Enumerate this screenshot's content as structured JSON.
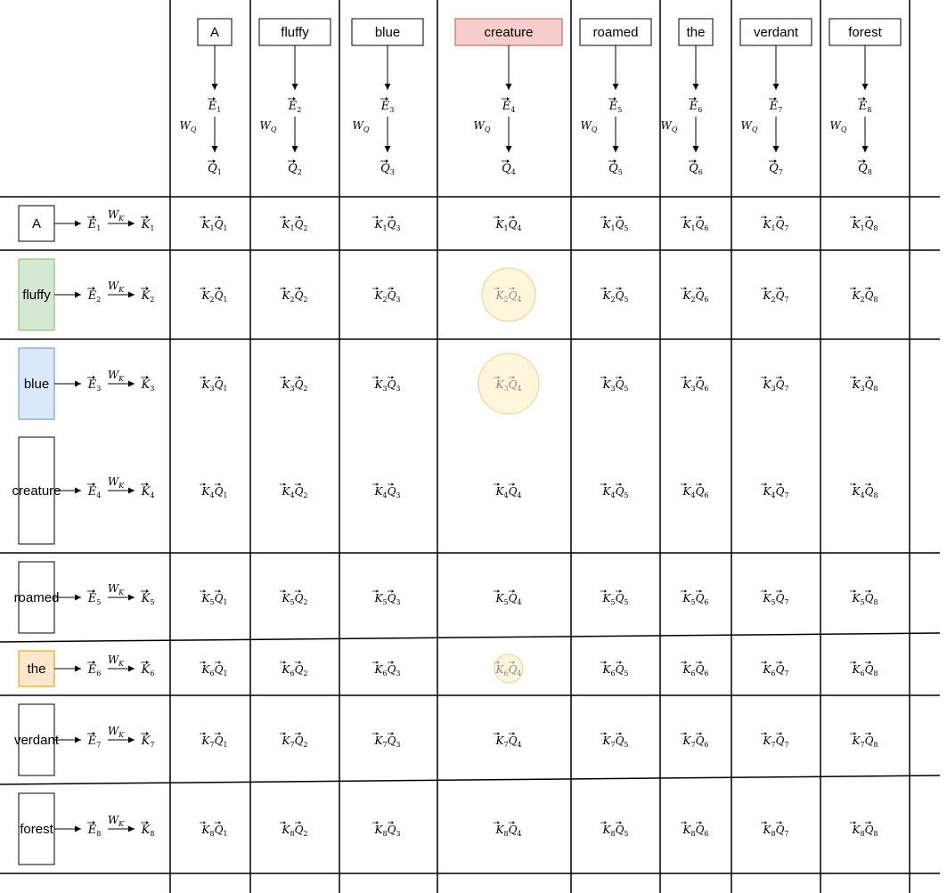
{
  "columns": {
    "words": [
      "A",
      "fluffy",
      "blue",
      "creature",
      "roamed",
      "the",
      "verdant",
      "forest"
    ],
    "highlight_index": 3,
    "highlight_fill": "#f8cecc",
    "highlight_stroke": "#b85450",
    "embedding_symbol": "E",
    "query_symbol": "Q",
    "weight_symbol": "W",
    "weight_subscript": "Q"
  },
  "rows": {
    "words": [
      "A",
      "fluffy",
      "blue",
      "creature",
      "roamed",
      "the",
      "verdant",
      "forest"
    ],
    "fills": [
      "#ffffff",
      "#d5e8d4",
      "#dae8fc",
      "#ffffff",
      "#ffffff",
      "#ffe6cc",
      "#ffffff",
      "#ffffff"
    ],
    "strokes": [
      "#000000",
      "#82b366",
      "#6c8ebf",
      "#000000",
      "#000000",
      "#d79b00",
      "#000000",
      "#000000"
    ],
    "embedding_symbol": "E",
    "key_symbol": "K",
    "weight_symbol": "W",
    "weight_subscript": "K"
  },
  "cells": {
    "key_symbol": "K",
    "query_symbol": "Q"
  },
  "attention_highlights": [
    {
      "row": 2,
      "col": 4,
      "strength": "medium"
    },
    {
      "row": 3,
      "col": 4,
      "strength": "strong"
    },
    {
      "row": 6,
      "col": 4,
      "strength": "weak"
    }
  ],
  "colors": {
    "grid": "#000000",
    "circle_fill": "#fff2cc",
    "circle_stroke": "#d6b656"
  }
}
